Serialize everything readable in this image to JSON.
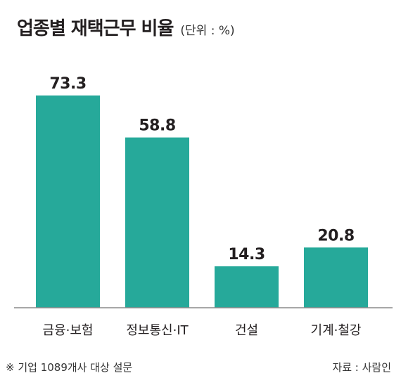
{
  "title": "업종별 재택근무 비율",
  "unit": "(단위 : %)",
  "note": "※ 기업 1089개사 대상 설문",
  "source": "자료 : 사람인",
  "colors": {
    "bar": "#26a99a",
    "axis": "#8a8a8a",
    "text": "#231f20"
  },
  "chart_data": {
    "type": "bar",
    "title": "업종별 재택근무 비율",
    "unit": "(단위 : %)",
    "categories": [
      "금융·보험",
      "정보통신·IT",
      "건설",
      "기계·철강"
    ],
    "values": [
      73.3,
      58.8,
      14.3,
      20.8
    ],
    "ylim": [
      0,
      82
    ],
    "grid": false,
    "legend": "none"
  }
}
